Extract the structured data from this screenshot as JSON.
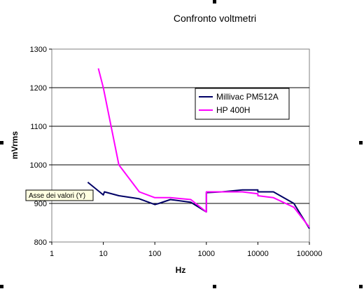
{
  "chart_data": {
    "type": "line",
    "title": "Confronto voltmetri",
    "xlabel": "Hz",
    "ylabel": "mVrms",
    "x_scale": "log",
    "xlim": [
      1,
      100000
    ],
    "ylim": [
      800,
      1300
    ],
    "x_ticks": [
      1,
      10,
      100,
      1000,
      10000,
      100000
    ],
    "x_tick_labels": [
      "1",
      "10",
      "100",
      "1000",
      "10000",
      "100000"
    ],
    "y_ticks": [
      800,
      900,
      1000,
      1100,
      1200,
      1300
    ],
    "y_tick_labels": [
      "800",
      "900",
      "1000",
      "1100",
      "1200",
      "1300"
    ],
    "grid": "horizontal",
    "legend_position": "right",
    "tooltip": "Asse dei valori (Y)",
    "series": [
      {
        "name": "Millivac PM512A",
        "color": "#000066",
        "points": [
          [
            5,
            955
          ],
          [
            10,
            922
          ],
          [
            10.5,
            930
          ],
          [
            20,
            920
          ],
          [
            50,
            912
          ],
          [
            100,
            897
          ],
          [
            120,
            900
          ],
          [
            200,
            910
          ],
          [
            500,
            903
          ],
          [
            1000,
            878
          ],
          [
            1000,
            928
          ],
          [
            2000,
            930
          ],
          [
            5000,
            935
          ],
          [
            10000,
            935
          ],
          [
            10000,
            930
          ],
          [
            20000,
            930
          ],
          [
            50000,
            900
          ],
          [
            100000,
            835
          ]
        ]
      },
      {
        "name": "HP 400H",
        "color": "#ff00ff",
        "points": [
          [
            8,
            1250
          ],
          [
            10,
            1200
          ],
          [
            20,
            1000
          ],
          [
            50,
            930
          ],
          [
            100,
            915
          ],
          [
            200,
            915
          ],
          [
            500,
            910
          ],
          [
            1000,
            878
          ],
          [
            1000,
            930
          ],
          [
            5000,
            930
          ],
          [
            10000,
            925
          ],
          [
            10000,
            920
          ],
          [
            20000,
            915
          ],
          [
            50000,
            890
          ],
          [
            100000,
            838
          ]
        ]
      }
    ]
  }
}
